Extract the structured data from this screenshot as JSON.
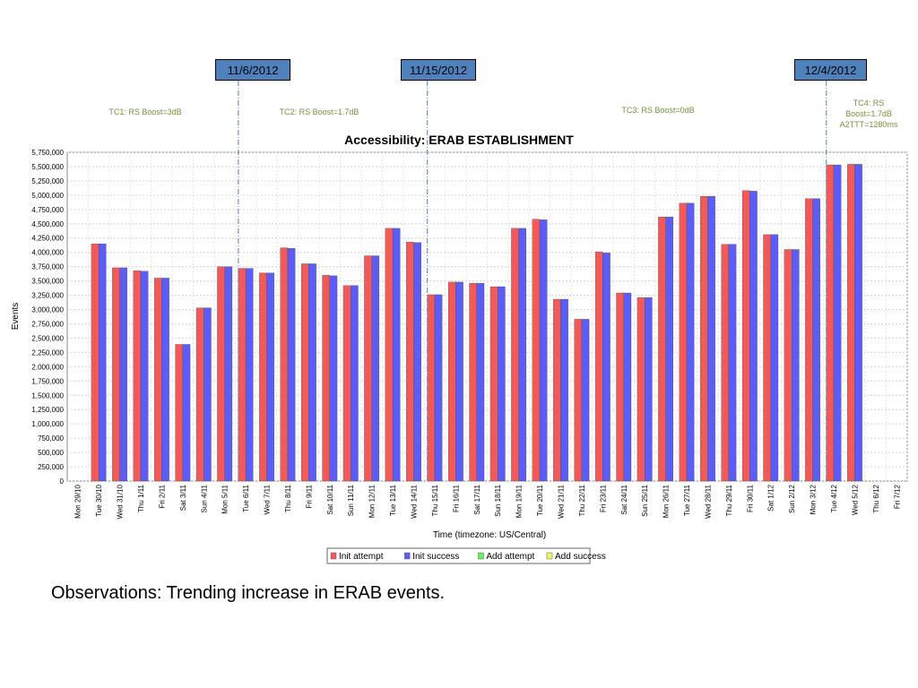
{
  "annotations": {
    "dates": [
      "11/6/2012",
      "11/15/2012",
      "12/4/2012"
    ],
    "test_cases": [
      "TC1: RS Boost=3dB",
      "TC2: RS Boost=1.7dB",
      "TC3: RS Boost=0dB",
      "TC4: RS Boost=1.7dB A2TTT=1280ms"
    ]
  },
  "observations": "Observations:  Trending increase in ERAB events.",
  "chart_data": {
    "type": "bar",
    "title": "Accessibility: ERAB ESTABLISHMENT",
    "xlabel": "Time (timezone: US/Central)",
    "ylabel": "Events",
    "ylim": [
      0,
      5750000
    ],
    "y_ticks": [
      "0",
      "250,000",
      "500,000",
      "750,000",
      "1,000,000",
      "1,250,000",
      "1,500,000",
      "1,750,000",
      "2,000,000",
      "2,250,000",
      "2,500,000",
      "2,750,000",
      "3,000,000",
      "3,250,000",
      "3,500,000",
      "3,750,000",
      "4,000,000",
      "4,250,000",
      "4,500,000",
      "4,750,000",
      "5,000,000",
      "5,250,000",
      "5,500,000",
      "5,750,000"
    ],
    "grid": true,
    "legend_position": "bottom",
    "categories": [
      "Mon 29/10",
      "Tue 30/10",
      "Wed 31/10",
      "Thu 1/11",
      "Fri 2/11",
      "Sat 3/11",
      "Sun 4/11",
      "Mon 5/11",
      "Tue 6/11",
      "Wed 7/11",
      "Thu 8/11",
      "Fri 9/11",
      "Sat 10/11",
      "Sun 11/11",
      "Mon 12/11",
      "Tue 13/11",
      "Wed 14/11",
      "Thu 15/11",
      "Fri 16/11",
      "Sat 17/11",
      "Sun 18/11",
      "Mon 19/11",
      "Tue 20/11",
      "Wed 21/11",
      "Thu 22/11",
      "Fri 23/11",
      "Sat 24/11",
      "Sun 25/11",
      "Mon 26/11",
      "Tue 27/11",
      "Wed 28/11",
      "Thu 29/11",
      "Fri 30/11",
      "Sat 1/12",
      "Sun 2/12",
      "Mon 3/12",
      "Tue 4/12",
      "Wed 5/12",
      "Thu 6/12",
      "Fri 7/12"
    ],
    "series": [
      {
        "name": "Init attempt",
        "color": "#f25a5a",
        "values": [
          0,
          4150000,
          3730000,
          3680000,
          3550000,
          2390000,
          3030000,
          3750000,
          3720000,
          3640000,
          4080000,
          3800000,
          3600000,
          3420000,
          3940000,
          4420000,
          4180000,
          3260000,
          3480000,
          3460000,
          3400000,
          4420000,
          4580000,
          3180000,
          2830000,
          4010000,
          3290000,
          3210000,
          4620000,
          4860000,
          4980000,
          4140000,
          5080000,
          4310000,
          4050000,
          4940000,
          5530000,
          5540000,
          0,
          0
        ]
      },
      {
        "name": "Init success",
        "color": "#5c5cf7",
        "values": [
          0,
          4150000,
          3730000,
          3670000,
          3550000,
          2390000,
          3030000,
          3750000,
          3720000,
          3640000,
          4070000,
          3800000,
          3590000,
          3420000,
          3940000,
          4420000,
          4170000,
          3260000,
          3480000,
          3460000,
          3400000,
          4420000,
          4570000,
          3180000,
          2830000,
          3990000,
          3290000,
          3210000,
          4620000,
          4860000,
          4980000,
          4140000,
          5070000,
          4310000,
          4050000,
          4940000,
          5530000,
          5540000,
          0,
          0
        ]
      },
      {
        "name": "Add attempt",
        "color": "#5ef55e",
        "values": [
          0,
          0,
          0,
          0,
          0,
          0,
          0,
          0,
          0,
          0,
          0,
          0,
          0,
          0,
          0,
          0,
          0,
          0,
          0,
          0,
          0,
          0,
          0,
          0,
          0,
          0,
          0,
          0,
          0,
          0,
          0,
          0,
          0,
          0,
          0,
          0,
          0,
          0,
          0,
          0
        ]
      },
      {
        "name": "Add success",
        "color": "#f5f55e",
        "values": [
          0,
          0,
          0,
          0,
          0,
          0,
          0,
          0,
          0,
          0,
          0,
          0,
          0,
          0,
          0,
          0,
          0,
          0,
          0,
          0,
          0,
          0,
          0,
          0,
          0,
          0,
          0,
          0,
          0,
          0,
          0,
          0,
          0,
          0,
          0,
          0,
          0,
          0,
          0,
          0
        ]
      }
    ]
  }
}
